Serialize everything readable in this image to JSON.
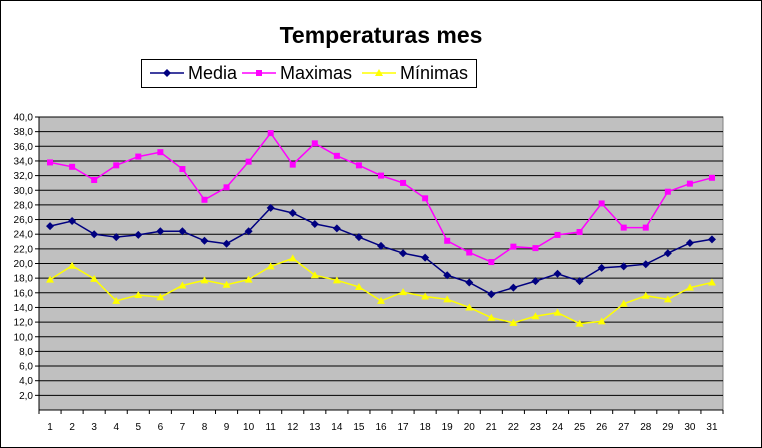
{
  "chart_data": {
    "type": "line",
    "title": "Temperaturas mes",
    "xlabel": "",
    "ylabel": "",
    "x": [
      1,
      2,
      3,
      4,
      5,
      6,
      7,
      8,
      9,
      10,
      11,
      12,
      13,
      14,
      15,
      16,
      17,
      18,
      19,
      20,
      21,
      22,
      23,
      24,
      25,
      26,
      27,
      28,
      29,
      30,
      31
    ],
    "ylim": [
      2.0,
      40.0
    ],
    "yticks": [
      "2,0",
      "4,0",
      "6,0",
      "8,0",
      "10,0",
      "12,0",
      "14,0",
      "16,0",
      "18,0",
      "20,0",
      "22,0",
      "24,0",
      "26,0",
      "28,0",
      "30,0",
      "32,0",
      "34,0",
      "36,0",
      "38,0",
      "40,0"
    ],
    "grid": "horizontal",
    "legend_position": "top",
    "plot_background": "#C0C0C0",
    "series": [
      {
        "name": "Media",
        "color": "#000080",
        "marker": "diamond",
        "values": [
          25.1,
          25.8,
          24.0,
          23.6,
          23.9,
          24.4,
          24.4,
          23.1,
          22.7,
          24.4,
          27.6,
          26.9,
          25.4,
          24.8,
          23.6,
          22.4,
          21.4,
          20.8,
          18.4,
          17.4,
          15.8,
          16.7,
          17.6,
          18.6,
          17.6,
          19.4,
          19.6,
          19.9,
          21.4,
          22.8,
          23.3
        ]
      },
      {
        "name": "Maximas",
        "color": "#FF00FF",
        "marker": "square",
        "values": [
          33.8,
          33.2,
          31.4,
          33.4,
          34.6,
          35.2,
          32.9,
          28.7,
          30.4,
          33.9,
          37.8,
          33.5,
          36.4,
          34.7,
          33.4,
          32.0,
          31.0,
          28.9,
          23.1,
          21.5,
          20.2,
          22.3,
          22.1,
          23.9,
          24.3,
          28.2,
          24.9,
          24.9,
          29.8,
          30.9,
          31.7
        ]
      },
      {
        "name": "Mínimas",
        "color": "#FFFF00",
        "marker": "triangle",
        "values": [
          17.8,
          19.7,
          17.9,
          14.9,
          15.7,
          15.4,
          17.0,
          17.7,
          17.1,
          17.8,
          19.6,
          20.7,
          18.4,
          17.7,
          16.8,
          14.9,
          16.1,
          15.5,
          15.1,
          14.0,
          12.6,
          11.9,
          12.8,
          13.3,
          11.8,
          12.1,
          14.5,
          15.6,
          15.1,
          16.7,
          17.4
        ]
      }
    ]
  }
}
